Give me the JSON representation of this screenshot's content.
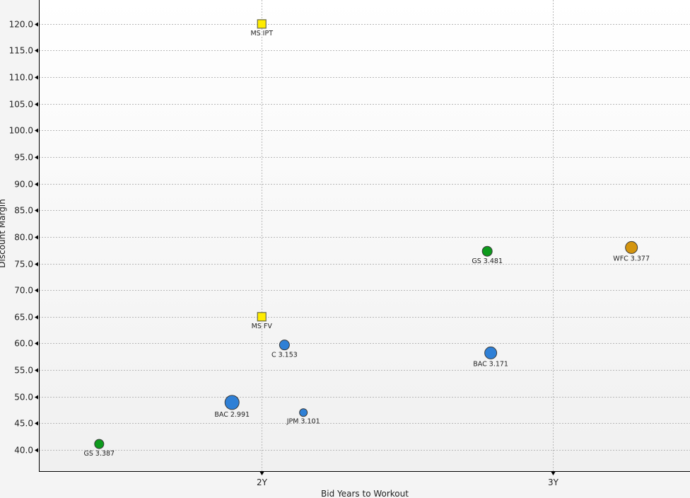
{
  "chart_data": {
    "type": "scatter",
    "title": "",
    "xlabel": "Bid Years to Workout",
    "ylabel": "Discount Margin",
    "xlim": [
      1.235,
      3.47
    ],
    "ylim": [
      36.0,
      124.5
    ],
    "x_ticks": [
      {
        "value": 2,
        "label": "2Y"
      },
      {
        "value": 3,
        "label": "3Y"
      }
    ],
    "y_ticks": [
      40,
      45,
      50,
      55,
      60,
      65,
      70,
      75,
      80,
      85,
      90,
      95,
      100,
      105,
      110,
      115,
      120
    ],
    "grid": true,
    "colors": {
      "blue": "#2f80d6",
      "green": "#0d9a1c",
      "orange": "#d4950f",
      "yellow": "#ffec00"
    },
    "points": [
      {
        "label": "MS IPT",
        "x": 2.0,
        "y": 120.0,
        "shape": "square",
        "color": "yellow",
        "size": 6
      },
      {
        "label": "MS FV",
        "x": 2.0,
        "y": 65.0,
        "shape": "square",
        "color": "yellow",
        "size": 6
      },
      {
        "label": "C 3.153",
        "x": 2.078,
        "y": 59.7,
        "shape": "circle",
        "color": "blue",
        "size": 7
      },
      {
        "label": "BAC 2.991",
        "x": 1.898,
        "y": 48.9,
        "shape": "circle",
        "color": "blue",
        "size": 10
      },
      {
        "label": "JPM 3.101",
        "x": 2.143,
        "y": 47.0,
        "shape": "circle",
        "color": "blue",
        "size": 5.5
      },
      {
        "label": "GS 3.387",
        "x": 1.442,
        "y": 41.1,
        "shape": "circle",
        "color": "green",
        "size": 6.5
      },
      {
        "label": "GS 3.481",
        "x": 2.774,
        "y": 77.3,
        "shape": "circle",
        "color": "green",
        "size": 7
      },
      {
        "label": "BAC 3.171",
        "x": 2.786,
        "y": 58.2,
        "shape": "circle",
        "color": "blue",
        "size": 8.5
      },
      {
        "label": "WFC 3.377",
        "x": 3.269,
        "y": 78.0,
        "shape": "circle",
        "color": "orange",
        "size": 8.5
      }
    ]
  }
}
